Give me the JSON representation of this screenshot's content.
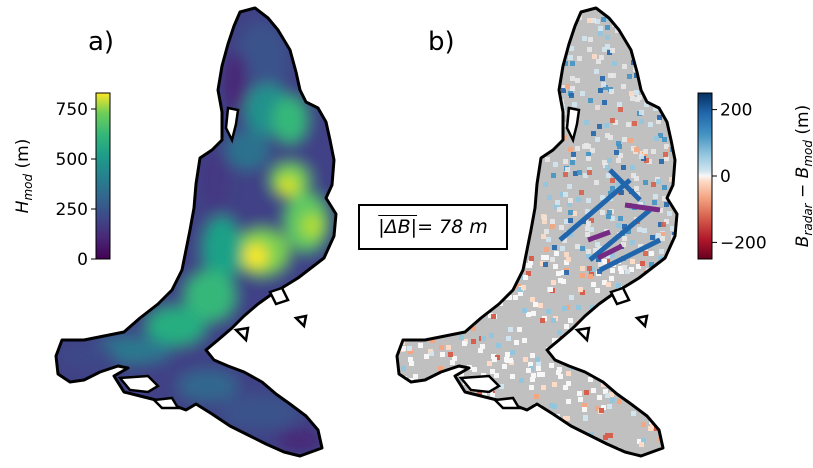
{
  "panels": {
    "a": {
      "label": "a)",
      "colorbar": {
        "ticks": [
          "750",
          "500",
          "250",
          "0"
        ],
        "tick_values": [
          750,
          500,
          250,
          0
        ],
        "range": [
          0,
          830
        ],
        "label_main": "H",
        "label_sub": "mod",
        "label_unit": " (m)",
        "colormap": "viridis"
      }
    },
    "b": {
      "label": "b)",
      "colorbar": {
        "ticks": [
          "200",
          "0",
          "−200"
        ],
        "tick_values": [
          200,
          0,
          -200
        ],
        "range": [
          -250,
          250
        ],
        "label_part1": "B",
        "label_sub1": "radar",
        "label_minus": " − ",
        "label_part2": "B",
        "label_sub2": "mod",
        "label_unit": " (m)",
        "colormap": "RdBu"
      }
    }
  },
  "annotation": {
    "symbol": "|ΔB|",
    "equals": " = 78 m"
  },
  "colors": {
    "outline": "#000000",
    "no_data": "#c0c0c0",
    "background": "#ffffff"
  }
}
